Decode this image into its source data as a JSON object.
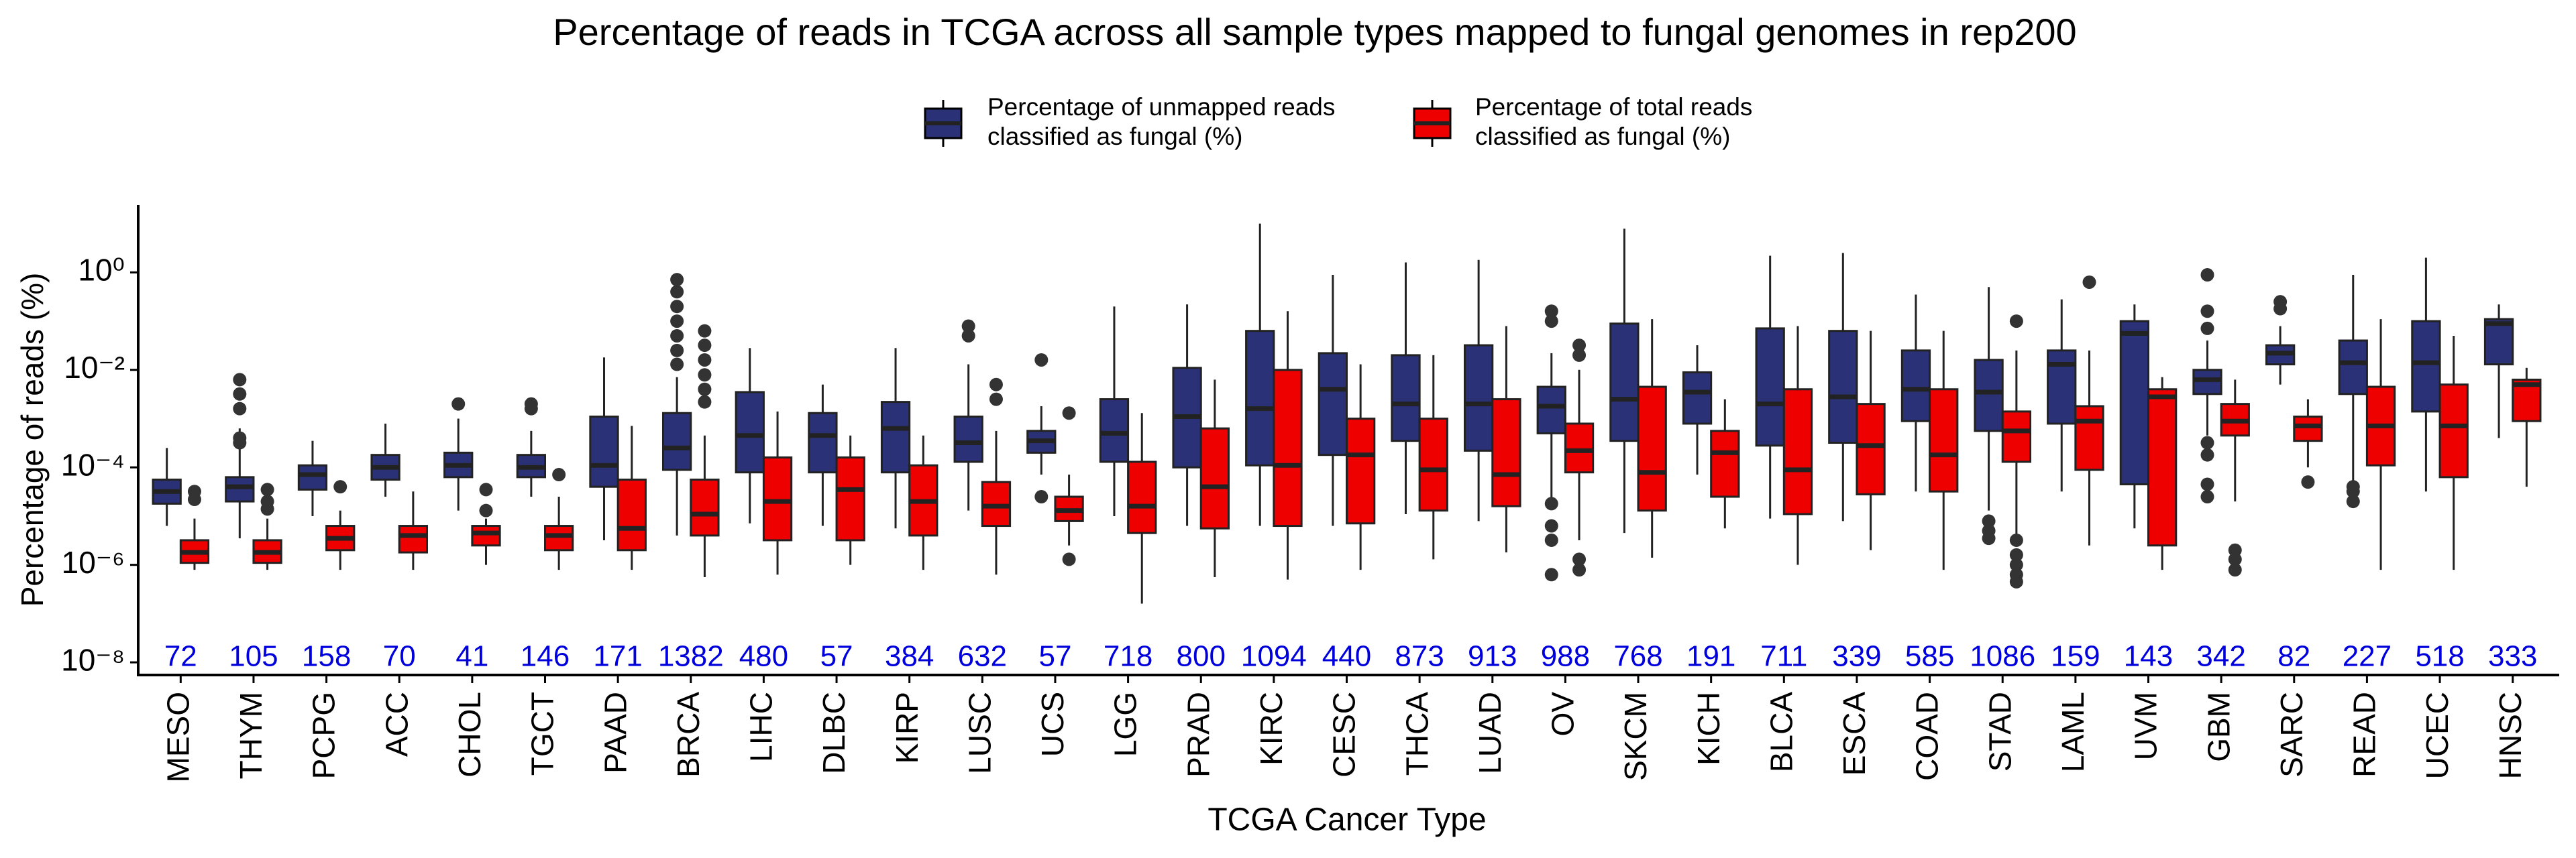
{
  "chart_data": {
    "type": "box",
    "title": "Percentage of reads in TCGA across all sample types mapped to fungal genomes in rep200",
    "x_label": "TCGA Cancer Type",
    "y_label": "Percentage of reads (%)",
    "log_scale": true,
    "grid": false,
    "legend_position": "top",
    "ylim": [
      5.5e-09,
      24
    ],
    "yticks": [
      {
        "value": 1e-08,
        "label": "10⁻⁸"
      },
      {
        "value": 1e-06,
        "label": "10⁻⁶"
      },
      {
        "value": 0.0001,
        "label": "10⁻⁴"
      },
      {
        "value": 0.01,
        "label": "10⁻²"
      },
      {
        "value": 1,
        "label": "10⁰"
      }
    ],
    "categories": [
      "MESO",
      "THYM",
      "PCPG",
      "ACC",
      "CHOL",
      "TGCT",
      "PAAD",
      "BRCA",
      "LIHC",
      "DLBC",
      "KIRP",
      "LUSC",
      "UCS",
      "LGG",
      "PRAD",
      "KIRC",
      "CESC",
      "THCA",
      "LUAD",
      "OV",
      "SKCM",
      "KICH",
      "BLCA",
      "ESCA",
      "COAD",
      "STAD",
      "LAML",
      "UVM",
      "GBM",
      "SARC",
      "READ",
      "UCEC",
      "HNSC"
    ],
    "counts": [
      72,
      105,
      158,
      70,
      41,
      146,
      171,
      1382,
      480,
      57,
      384,
      632,
      57,
      718,
      800,
      1094,
      440,
      873,
      913,
      988,
      768,
      191,
      711,
      339,
      585,
      1086,
      159,
      143,
      342,
      82,
      227,
      518,
      333
    ],
    "count_color": "#0000dd",
    "series": [
      {
        "name": "Percentage of unmapped reads classified as fungal (%)",
        "color": "#2b3177",
        "boxes": [
          {
            "min": 6.3e-06,
            "q1": 1.8e-05,
            "median": 3.2e-05,
            "q3": 5.6e-05,
            "max": 0.00025
          },
          {
            "min": 3.5e-06,
            "q1": 2e-05,
            "median": 4e-05,
            "q3": 6.3e-05,
            "max": 0.00063,
            "outliers": [
              0.0063,
              0.0032,
              0.0016,
              0.0004,
              0.00032
            ]
          },
          {
            "min": 1e-05,
            "q1": 3.5e-05,
            "median": 7.1e-05,
            "q3": 0.00011,
            "max": 0.00035
          },
          {
            "min": 2.5e-05,
            "q1": 5.6e-05,
            "median": 0.0001,
            "q3": 0.00018,
            "max": 0.00079
          },
          {
            "min": 1.3e-05,
            "q1": 6.3e-05,
            "median": 0.00011,
            "q3": 0.0002,
            "max": 0.001,
            "outliers": [
              0.002
            ]
          },
          {
            "min": 2.5e-05,
            "q1": 6.3e-05,
            "median": 0.0001,
            "q3": 0.00018,
            "max": 0.00056,
            "outliers": [
              0.002,
              0.0016
            ]
          },
          {
            "min": 3.2e-06,
            "q1": 4e-05,
            "median": 0.00011,
            "q3": 0.0011,
            "max": 0.018
          },
          {
            "min": 4e-06,
            "q1": 8.9e-05,
            "median": 0.00025,
            "q3": 0.0013,
            "max": 0.0071,
            "outliers": [
              0.71,
              0.4,
              0.2,
              0.1,
              0.05,
              0.025,
              0.013
            ]
          },
          {
            "min": 7.1e-06,
            "q1": 7.9e-05,
            "median": 0.00045,
            "q3": 0.0035,
            "max": 0.028
          },
          {
            "min": 6.3e-06,
            "q1": 7.9e-05,
            "median": 0.00045,
            "q3": 0.0013,
            "max": 0.005
          },
          {
            "min": 5.6e-06,
            "q1": 7.9e-05,
            "median": 0.00063,
            "q3": 0.0022,
            "max": 0.028
          },
          {
            "min": 1.3e-05,
            "q1": 0.00013,
            "median": 0.00032,
            "q3": 0.0011,
            "max": 0.013,
            "outliers": [
              0.079,
              0.05
            ]
          },
          {
            "min": 7.1e-05,
            "q1": 0.0002,
            "median": 0.00035,
            "q3": 0.00056,
            "max": 0.0018,
            "outliers": [
              0.016,
              2.5e-05
            ]
          },
          {
            "min": 1e-05,
            "q1": 0.00013,
            "median": 0.0005,
            "q3": 0.0025,
            "max": 0.2
          },
          {
            "min": 6.3e-06,
            "q1": 0.0001,
            "median": 0.0011,
            "q3": 0.011,
            "max": 0.22
          },
          {
            "min": 6.3e-06,
            "q1": 0.00011,
            "median": 0.0016,
            "q3": 0.063,
            "max": 10
          },
          {
            "min": 6.3e-06,
            "q1": 0.00018,
            "median": 0.004,
            "q3": 0.022,
            "max": 0.89
          },
          {
            "min": 1.1e-05,
            "q1": 0.00035,
            "median": 0.002,
            "q3": 0.02,
            "max": 1.6
          },
          {
            "min": 7.9e-06,
            "q1": 0.00022,
            "median": 0.002,
            "q3": 0.032,
            "max": 1.8
          },
          {
            "min": 2e-05,
            "q1": 0.0005,
            "median": 0.0018,
            "q3": 0.0045,
            "max": 0.022,
            "outliers": [
              0.16,
              0.1,
              1.8e-05,
              6.3e-06,
              3.2e-06,
              6.3e-07
            ]
          },
          {
            "min": 4.5e-06,
            "q1": 0.00035,
            "median": 0.0025,
            "q3": 0.089,
            "max": 7.9
          },
          {
            "min": 7.1e-05,
            "q1": 0.00079,
            "median": 0.0035,
            "q3": 0.0089,
            "max": 0.032
          },
          {
            "min": 8.9e-06,
            "q1": 0.00028,
            "median": 0.002,
            "q3": 0.071,
            "max": 2.2
          },
          {
            "min": 7.9e-06,
            "q1": 0.00032,
            "median": 0.0028,
            "q3": 0.063,
            "max": 2.5
          },
          {
            "min": 3.2e-05,
            "q1": 0.00089,
            "median": 0.004,
            "q3": 0.025,
            "max": 0.35
          },
          {
            "min": 1.3e-05,
            "q1": 0.00056,
            "median": 0.0035,
            "q3": 0.016,
            "max": 0.5,
            "outliers": [
              7.9e-06,
              5e-06,
              3.5e-06
            ]
          },
          {
            "min": 3.2e-05,
            "q1": 0.00079,
            "median": 0.013,
            "q3": 0.025,
            "max": 0.28
          },
          {
            "min": 5.6e-06,
            "q1": 4.5e-05,
            "median": 0.056,
            "q3": 0.1,
            "max": 0.22
          },
          {
            "min": 0.00045,
            "q1": 0.0032,
            "median": 0.0063,
            "q3": 0.01,
            "max": 0.04,
            "outliers": [
              0.89,
              0.16,
              0.071,
              0.00032,
              0.00018,
              4.5e-05,
              2.5e-05
            ]
          },
          {
            "min": 0.005,
            "q1": 0.013,
            "median": 0.022,
            "q3": 0.032,
            "max": 0.079,
            "outliers": [
              0.25,
              0.18
            ]
          },
          {
            "min": 5e-05,
            "q1": 0.0032,
            "median": 0.014,
            "q3": 0.04,
            "max": 0.89,
            "outliers": [
              4e-05,
              3.2e-05,
              2e-05
            ]
          },
          {
            "min": 3.2e-05,
            "q1": 0.0014,
            "median": 0.014,
            "q3": 0.1,
            "max": 2.0
          },
          {
            "min": 0.0004,
            "q1": 0.013,
            "median": 0.089,
            "q3": 0.11,
            "max": 0.22
          }
        ]
      },
      {
        "name": "Percentage of total reads classified as fungal (%)",
        "color": "#ee0000",
        "boxes": [
          {
            "min": 7.9e-07,
            "q1": 1.1e-06,
            "median": 1.8e-06,
            "q3": 3.2e-06,
            "max": 8.9e-06,
            "outliers": [
              3.2e-05,
              2.2e-05
            ]
          },
          {
            "min": 7.9e-07,
            "q1": 1.1e-06,
            "median": 1.8e-06,
            "q3": 3.2e-06,
            "max": 8.9e-06,
            "outliers": [
              3.5e-05,
              2e-05,
              1.4e-05
            ]
          },
          {
            "min": 7.9e-07,
            "q1": 2e-06,
            "median": 3.5e-06,
            "q3": 6.3e-06,
            "max": 1.3e-05,
            "outliers": [
              4e-05
            ]
          },
          {
            "min": 7.9e-07,
            "q1": 1.8e-06,
            "median": 4e-06,
            "q3": 6.3e-06,
            "max": 3.2e-05
          },
          {
            "min": 1e-06,
            "q1": 2.5e-06,
            "median": 4.5e-06,
            "q3": 6.3e-06,
            "max": 8.9e-06,
            "outliers": [
              3.5e-05,
              1.3e-05
            ]
          },
          {
            "min": 7.9e-07,
            "q1": 2e-06,
            "median": 4e-06,
            "q3": 6.3e-06,
            "max": 2.5e-05,
            "outliers": [
              7.1e-05
            ]
          },
          {
            "min": 7.9e-07,
            "q1": 2e-06,
            "median": 5.6e-06,
            "q3": 5.6e-05,
            "max": 0.00071
          },
          {
            "min": 5.6e-07,
            "q1": 4e-06,
            "median": 1.1e-05,
            "q3": 5.6e-05,
            "max": 0.00045,
            "outliers": [
              0.063,
              0.032,
              0.016,
              0.0079,
              0.004,
              0.0022
            ]
          },
          {
            "min": 6.3e-07,
            "q1": 3.2e-06,
            "median": 2e-05,
            "q3": 0.00016,
            "max": 0.0014
          },
          {
            "min": 1e-06,
            "q1": 3.2e-06,
            "median": 3.5e-05,
            "q3": 0.00016,
            "max": 0.00045
          },
          {
            "min": 7.9e-07,
            "q1": 4e-06,
            "median": 2e-05,
            "q3": 0.00011,
            "max": 0.00045
          },
          {
            "min": 6.3e-07,
            "q1": 6.3e-06,
            "median": 1.6e-05,
            "q3": 5e-05,
            "max": 0.00056,
            "outliers": [
              0.005,
              0.0025
            ]
          },
          {
            "min": 2.5e-06,
            "q1": 7.9e-06,
            "median": 1.3e-05,
            "q3": 2.5e-05,
            "max": 7.1e-05,
            "outliers": [
              0.0013,
              1.3e-06
            ]
          },
          {
            "min": 1.6e-07,
            "q1": 4.5e-06,
            "median": 1.6e-05,
            "q3": 0.00013,
            "max": 0.0013
          },
          {
            "min": 5.6e-07,
            "q1": 5.6e-06,
            "median": 4e-05,
            "q3": 0.00063,
            "max": 0.0063
          },
          {
            "min": 5e-07,
            "q1": 6.3e-06,
            "median": 0.00011,
            "q3": 0.01,
            "max": 0.16
          },
          {
            "min": 7.9e-07,
            "q1": 7.1e-06,
            "median": 0.00018,
            "q3": 0.001,
            "max": 0.013
          },
          {
            "min": 1.3e-06,
            "q1": 1.3e-05,
            "median": 8.9e-05,
            "q3": 0.001,
            "max": 0.02
          },
          {
            "min": 1.8e-06,
            "q1": 1.6e-05,
            "median": 7.1e-05,
            "q3": 0.0025,
            "max": 0.079
          },
          {
            "min": 3.2e-06,
            "q1": 7.9e-05,
            "median": 0.00022,
            "q3": 0.00079,
            "max": 0.01,
            "outliers": [
              0.032,
              0.02,
              1.3e-06,
              7.9e-07
            ]
          },
          {
            "min": 1.4e-06,
            "q1": 1.3e-05,
            "median": 7.9e-05,
            "q3": 0.0045,
            "max": 0.11
          },
          {
            "min": 5.6e-06,
            "q1": 2.5e-05,
            "median": 0.0002,
            "q3": 0.00056,
            "max": 0.0025
          },
          {
            "min": 1e-06,
            "q1": 1.1e-05,
            "median": 8.9e-05,
            "q3": 0.004,
            "max": 0.079
          },
          {
            "min": 2e-06,
            "q1": 2.8e-05,
            "median": 0.00028,
            "q3": 0.002,
            "max": 0.063
          },
          {
            "min": 7.9e-07,
            "q1": 3.2e-05,
            "median": 0.00018,
            "q3": 0.004,
            "max": 0.063
          },
          {
            "min": 4e-06,
            "q1": 0.00013,
            "median": 0.00056,
            "q3": 0.0014,
            "max": 0.025,
            "outliers": [
              0.1,
              3.2e-06,
              1.6e-06,
              1e-06,
              6.3e-07,
              4.5e-07
            ]
          },
          {
            "min": 2.5e-06,
            "q1": 8.9e-05,
            "median": 0.00089,
            "q3": 0.0018,
            "max": 0.025,
            "outliers": [
              0.63
            ]
          },
          {
            "min": 7.9e-07,
            "q1": 2.5e-06,
            "median": 0.0028,
            "q3": 0.004,
            "max": 0.0071
          },
          {
            "min": 2e-05,
            "q1": 0.00045,
            "median": 0.00089,
            "q3": 0.002,
            "max": 0.0063,
            "outliers": [
              2e-06,
              1.3e-06,
              7.9e-07
            ]
          },
          {
            "min": 0.0001,
            "q1": 0.00035,
            "median": 0.00071,
            "q3": 0.0011,
            "max": 0.0025,
            "outliers": [
              5e-05
            ]
          },
          {
            "min": 7.9e-07,
            "q1": 0.00011,
            "median": 0.00071,
            "q3": 0.0045,
            "max": 0.11
          },
          {
            "min": 7.9e-07,
            "q1": 6.3e-05,
            "median": 0.00071,
            "q3": 0.005,
            "max": 0.05
          },
          {
            "min": 4e-05,
            "q1": 0.00089,
            "median": 0.005,
            "q3": 0.0063,
            "max": 0.011
          }
        ]
      }
    ]
  }
}
